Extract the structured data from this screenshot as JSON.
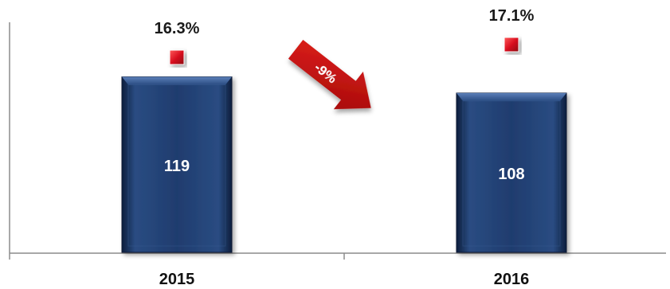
{
  "chart_data": {
    "type": "bar",
    "categories": [
      "2015",
      "2016"
    ],
    "series": [
      {
        "values": [
          119,
          108
        ]
      },
      {
        "type": "scatter",
        "values": [
          "16.3%",
          "17.1%"
        ],
        "numeric": [
          16.3,
          17.1
        ]
      }
    ],
    "annotations": [
      {
        "text": "-9%",
        "kind": "arrow"
      }
    ],
    "grid": false,
    "legend": "none",
    "colors": {
      "bar": "#1f3c6e",
      "bar_light": "#3d6199",
      "bar_dark": "#0d1e3d",
      "marker": "#d91020",
      "arrow": "#c40d0d",
      "axis": "#8c8c8c"
    }
  }
}
